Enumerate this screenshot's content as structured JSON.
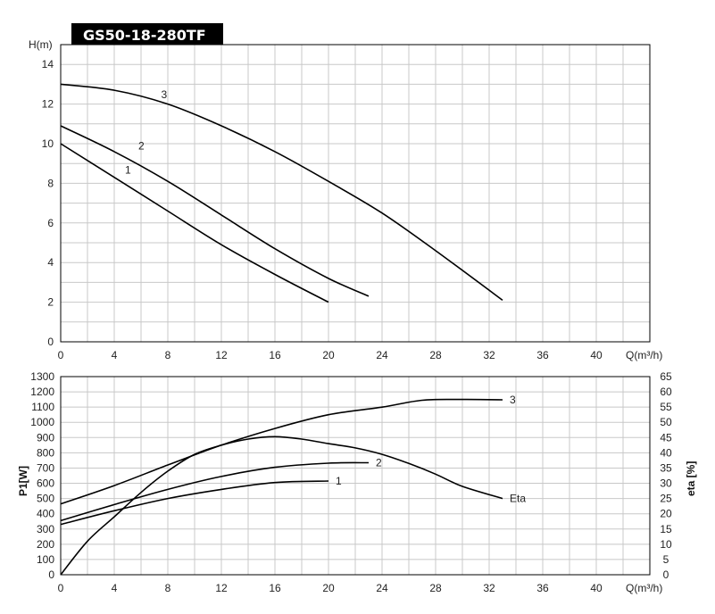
{
  "chart_data": [
    {
      "type": "line",
      "title": "GS50-18-280TF",
      "ylabel": "H(m)",
      "xlabel": "Q(m³/h)",
      "xlim": [
        0,
        44
      ],
      "ylim": [
        0,
        15
      ],
      "xticks": [
        0,
        4,
        8,
        12,
        16,
        20,
        24,
        28,
        32,
        36,
        40
      ],
      "yticks": [
        0,
        2,
        4,
        6,
        8,
        10,
        12,
        14
      ],
      "grid": true,
      "series": [
        {
          "name": "1",
          "x": [
            0,
            4,
            8,
            12,
            16,
            20
          ],
          "y": [
            10.0,
            8.3,
            6.6,
            4.9,
            3.4,
            2.0
          ]
        },
        {
          "name": "2",
          "x": [
            0,
            4,
            8,
            12,
            16,
            20,
            23
          ],
          "y": [
            10.9,
            9.6,
            8.1,
            6.4,
            4.7,
            3.2,
            2.3
          ]
        },
        {
          "name": "3",
          "x": [
            0,
            4,
            8,
            12,
            16,
            20,
            24,
            28,
            33
          ],
          "y": [
            13.0,
            12.7,
            12.0,
            10.9,
            9.6,
            8.1,
            6.5,
            4.6,
            2.1
          ]
        }
      ]
    },
    {
      "type": "line",
      "ylabel": "P1[W]",
      "y2label": "eta [%]",
      "xlabel": "Q(m³/h)",
      "xlim": [
        0,
        44
      ],
      "ylim": [
        0,
        1300
      ],
      "y2lim": [
        0,
        65
      ],
      "xticks": [
        0,
        4,
        8,
        12,
        16,
        20,
        24,
        28,
        32,
        36,
        40
      ],
      "yticks": [
        0,
        100,
        200,
        300,
        400,
        500,
        600,
        700,
        800,
        900,
        1000,
        1100,
        1200,
        1300
      ],
      "y2ticks": [
        0,
        5,
        10,
        15,
        20,
        25,
        30,
        35,
        40,
        45,
        50,
        55,
        60,
        65
      ],
      "grid": true,
      "series": [
        {
          "name": "1",
          "x": [
            0,
            4,
            8,
            12,
            16,
            20
          ],
          "y": [
            330,
            420,
            500,
            560,
            605,
            615
          ]
        },
        {
          "name": "2",
          "x": [
            0,
            4,
            8,
            12,
            16,
            20,
            23
          ],
          "y": [
            355,
            460,
            560,
            645,
            705,
            732,
            735
          ]
        },
        {
          "name": "3",
          "x": [
            0,
            4,
            8,
            12,
            16,
            20,
            24,
            27,
            30,
            33
          ],
          "y": [
            465,
            585,
            720,
            850,
            960,
            1050,
            1100,
            1145,
            1150,
            1148
          ]
        },
        {
          "name": "Eta",
          "axis": "y2",
          "x": [
            0,
            2,
            4,
            6,
            8,
            10,
            12,
            14,
            16,
            18,
            20,
            22,
            24,
            26,
            28,
            30,
            33
          ],
          "y": [
            0,
            11,
            19,
            27,
            34,
            39.5,
            42.5,
            44.5,
            45.3,
            44.5,
            43.0,
            41.6,
            39.5,
            36.5,
            33.0,
            29.0,
            25.0
          ]
        }
      ]
    }
  ]
}
